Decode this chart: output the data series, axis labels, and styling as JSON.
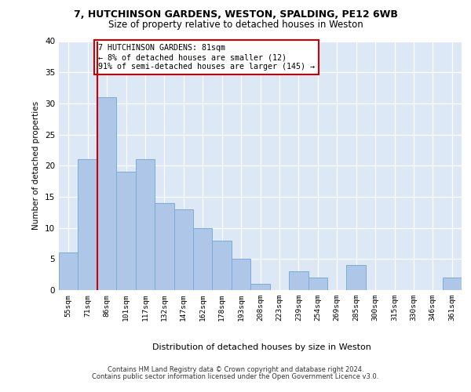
{
  "title1": "7, HUTCHINSON GARDENS, WESTON, SPALDING, PE12 6WB",
  "title2": "Size of property relative to detached houses in Weston",
  "xlabel": "Distribution of detached houses by size in Weston",
  "ylabel": "Number of detached properties",
  "categories": [
    "55sqm",
    "71sqm",
    "86sqm",
    "101sqm",
    "117sqm",
    "132sqm",
    "147sqm",
    "162sqm",
    "178sqm",
    "193sqm",
    "208sqm",
    "223sqm",
    "239sqm",
    "254sqm",
    "269sqm",
    "285sqm",
    "300sqm",
    "315sqm",
    "330sqm",
    "346sqm",
    "361sqm"
  ],
  "values": [
    6,
    21,
    31,
    19,
    21,
    14,
    13,
    10,
    8,
    5,
    1,
    0,
    3,
    2,
    0,
    4,
    0,
    0,
    0,
    0,
    2
  ],
  "bar_color": "#aec6e8",
  "bar_edge_color": "#7aadd4",
  "annotation_text": "7 HUTCHINSON GARDENS: 81sqm\n← 8% of detached houses are smaller (12)\n91% of semi-detached houses are larger (145) →",
  "annotation_box_facecolor": "#ffffff",
  "annotation_box_edgecolor": "#cc0000",
  "vline_color": "#cc0000",
  "vline_x": 1.5,
  "ylim": [
    0,
    40
  ],
  "yticks": [
    0,
    5,
    10,
    15,
    20,
    25,
    30,
    35,
    40
  ],
  "grid_color": "#ffffff",
  "bg_color": "#dce8f5",
  "footer1": "Contains HM Land Registry data © Crown copyright and database right 2024.",
  "footer2": "Contains public sector information licensed under the Open Government Licence v3.0."
}
